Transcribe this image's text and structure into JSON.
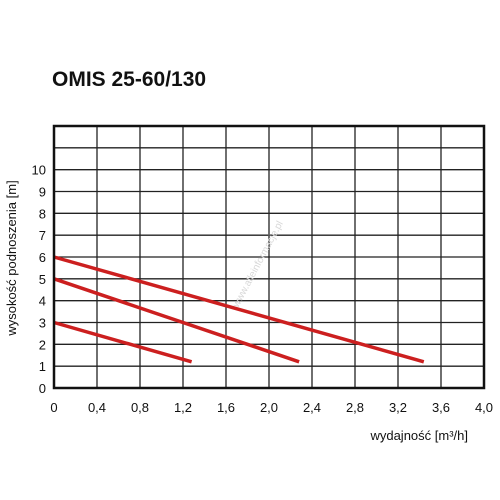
{
  "chart_data": {
    "type": "line",
    "title": "OMIS 25-60/130",
    "xlabel": "wydajność [m³/h]",
    "ylabel": "wysokość podnoszenia [m]",
    "xlim": [
      0,
      4.0
    ],
    "ylim": [
      0,
      12
    ],
    "x_ticks": [
      "0",
      "0,4",
      "0,8",
      "1,2",
      "1,6",
      "2,0",
      "2,4",
      "2,8",
      "3,2",
      "3,6",
      "4,0"
    ],
    "y_ticks": [
      "0",
      "1",
      "2",
      "3",
      "4",
      "5",
      "6",
      "7",
      "8",
      "9",
      "10"
    ],
    "grid": true,
    "series_color": "#cc1f1f",
    "series": [
      {
        "x": [
          0,
          1.28
        ],
        "y": [
          3.0,
          1.2
        ]
      },
      {
        "x": [
          0,
          2.28
        ],
        "y": [
          5.0,
          1.2
        ]
      },
      {
        "x": [
          0,
          3.44
        ],
        "y": [
          6.0,
          1.2
        ]
      }
    ]
  },
  "watermark": "www.alleinformacje.pl"
}
